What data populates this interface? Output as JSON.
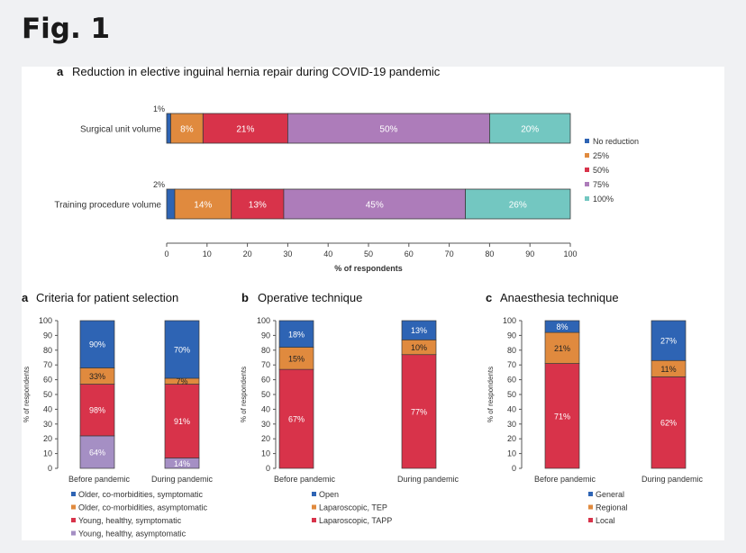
{
  "figure_title": "Fig. 1",
  "colors": {
    "blue": "#2e64b4",
    "orange": "#e08a3e",
    "red": "#d8334a",
    "purple": "#ad7cba",
    "teal": "#73c7c1",
    "lilac": "#a58fc4"
  },
  "chart_data": [
    {
      "id": "top",
      "type": "bar",
      "orientation": "horizontal",
      "stacked": true,
      "panel_letter": "a",
      "title": "Reduction in elective inguinal hernia repair during COVID-19 pandemic",
      "xlabel": "% of respondents",
      "xlim": [
        0,
        100
      ],
      "xticks": [
        0,
        10,
        20,
        30,
        40,
        50,
        60,
        70,
        80,
        90,
        100
      ],
      "tick_labels": [
        "0",
        "10",
        "20",
        "30",
        "40",
        "50",
        "60",
        "70",
        "80",
        "90",
        "100"
      ],
      "categories": [
        "Surgical unit volume",
        "Training procedure volume"
      ],
      "series": [
        {
          "name": "No reduction",
          "color": "#2e64b4",
          "values": [
            1,
            2
          ],
          "labels": [
            "1%",
            "2%"
          ]
        },
        {
          "name": "25%",
          "color": "#e08a3e",
          "values": [
            8,
            14
          ],
          "labels": [
            "8%",
            "14%"
          ]
        },
        {
          "name": "50%",
          "color": "#d8334a",
          "values": [
            21,
            13
          ],
          "labels": [
            "21%",
            "13%"
          ]
        },
        {
          "name": "75%",
          "color": "#ad7cba",
          "values": [
            50,
            45
          ],
          "labels": [
            "50%",
            "45%"
          ]
        },
        {
          "name": "100%",
          "color": "#73c7c1",
          "values": [
            20,
            26
          ],
          "labels": [
            "20%",
            "26%"
          ]
        }
      ]
    },
    {
      "id": "criteria",
      "type": "bar",
      "stacked": true,
      "panel_letter": "a",
      "title": "Criteria for patient selection",
      "ylabel": "% of respondents",
      "ylim": [
        0,
        100
      ],
      "yticks": [
        0,
        10,
        20,
        30,
        40,
        50,
        60,
        70,
        80,
        90,
        100
      ],
      "tick_labels": [
        "0",
        "10",
        "20",
        "30",
        "40",
        "50",
        "60",
        "70",
        "80",
        "90",
        "100"
      ],
      "categories": [
        "Before pandemic",
        "During pandemic"
      ],
      "series": [
        {
          "name": "Young, healthy, asymptomatic",
          "color": "#a58fc4",
          "values": [
            22,
            7
          ],
          "labels": [
            "64%",
            "14%"
          ]
        },
        {
          "name": "Young, healthy, symptomatic",
          "color": "#d8334a",
          "values": [
            35,
            50
          ],
          "labels": [
            "98%",
            "91%"
          ]
        },
        {
          "name": "Older, co-morbidities, asymptomatic",
          "color": "#e08a3e",
          "values": [
            11,
            4
          ],
          "labels": [
            "33%",
            "7%"
          ]
        },
        {
          "name": "Older, co-morbidities, symptomatic",
          "color": "#2e64b4",
          "values": [
            32,
            39
          ],
          "labels": [
            "90%",
            "70%"
          ]
        }
      ],
      "legend_order": [
        "Older, co-morbidities, symptomatic",
        "Older, co-morbidities, asymptomatic",
        "Young, healthy, symptomatic",
        "Young, healthy, asymptomatic"
      ]
    },
    {
      "id": "operative",
      "type": "bar",
      "stacked": true,
      "panel_letter": "b",
      "title": "Operative technique",
      "ylabel": "% of respondents",
      "ylim": [
        0,
        100
      ],
      "yticks": [
        0,
        10,
        20,
        30,
        40,
        50,
        60,
        70,
        80,
        90,
        100
      ],
      "tick_labels": [
        "0",
        "10",
        "20",
        "30",
        "40",
        "50",
        "60",
        "70",
        "80",
        "90",
        "100"
      ],
      "categories": [
        "Before pandemic",
        "During pandemic"
      ],
      "series": [
        {
          "name": "Laparoscopic, TAPP",
          "color": "#d8334a",
          "values": [
            67,
            77
          ],
          "labels": [
            "67%",
            "77%"
          ]
        },
        {
          "name": "Laparoscopic, TEP",
          "color": "#e08a3e",
          "values": [
            15,
            10
          ],
          "labels": [
            "15%",
            "10%"
          ]
        },
        {
          "name": "Open",
          "color": "#2e64b4",
          "values": [
            18,
            13
          ],
          "labels": [
            "18%",
            "13%"
          ]
        }
      ],
      "legend_order": [
        "Open",
        "Laparoscopic, TEP",
        "Laparoscopic, TAPP"
      ]
    },
    {
      "id": "anaesthesia",
      "type": "bar",
      "stacked": true,
      "panel_letter": "c",
      "title": "Anaesthesia technique",
      "ylabel": "% of respondents",
      "ylim": [
        0,
        100
      ],
      "yticks": [
        0,
        10,
        20,
        30,
        40,
        50,
        60,
        70,
        80,
        90,
        100
      ],
      "tick_labels": [
        "0",
        "10",
        "20",
        "30",
        "40",
        "50",
        "60",
        "70",
        "80",
        "90",
        "100"
      ],
      "categories": [
        "Before pandemic",
        "During pandemic"
      ],
      "series": [
        {
          "name": "Local",
          "color": "#d8334a",
          "values": [
            71,
            62
          ],
          "labels": [
            "71%",
            "62%"
          ]
        },
        {
          "name": "Regional",
          "color": "#e08a3e",
          "values": [
            21,
            11
          ],
          "labels": [
            "21%",
            "11%"
          ]
        },
        {
          "name": "General",
          "color": "#2e64b4",
          "values": [
            8,
            27
          ],
          "labels": [
            "8%",
            "27%"
          ]
        }
      ],
      "legend_order": [
        "General",
        "Regional",
        "Local"
      ]
    }
  ]
}
